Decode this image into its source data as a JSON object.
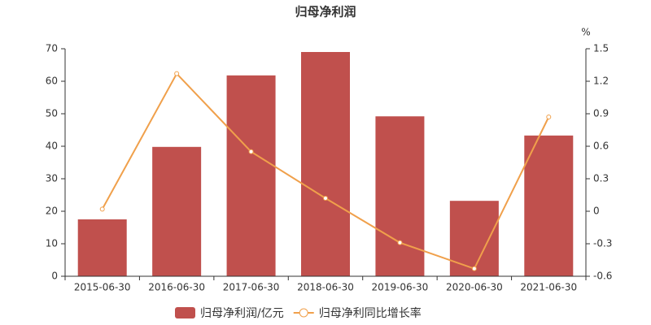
{
  "chart_data": {
    "type": "bar-line",
    "title": "归母净利润",
    "categories": [
      "2015-06-30",
      "2016-06-30",
      "2017-06-30",
      "2018-06-30",
      "2019-06-30",
      "2020-06-30",
      "2021-06-30"
    ],
    "series": [
      {
        "name": "归母净利润/亿元",
        "type": "bar",
        "color": "#c0504d",
        "values": [
          17.5,
          39.8,
          61.8,
          69.0,
          49.2,
          23.2,
          43.3
        ]
      },
      {
        "name": "归母净利同比增长率",
        "type": "line",
        "axis": "y2",
        "color": "#f0a04b",
        "values": [
          0.02,
          1.27,
          0.55,
          0.12,
          -0.29,
          -0.53,
          0.87
        ]
      }
    ],
    "ylim": [
      0,
      70
    ],
    "yticks": [
      0,
      10,
      20,
      30,
      40,
      50,
      60,
      70
    ],
    "y2label": "%",
    "y2lim": [
      -0.6,
      1.5
    ],
    "y2ticks": [
      -0.6,
      -0.3,
      0,
      0.3,
      0.6,
      0.9,
      1.2,
      1.5
    ],
    "grid": false
  }
}
